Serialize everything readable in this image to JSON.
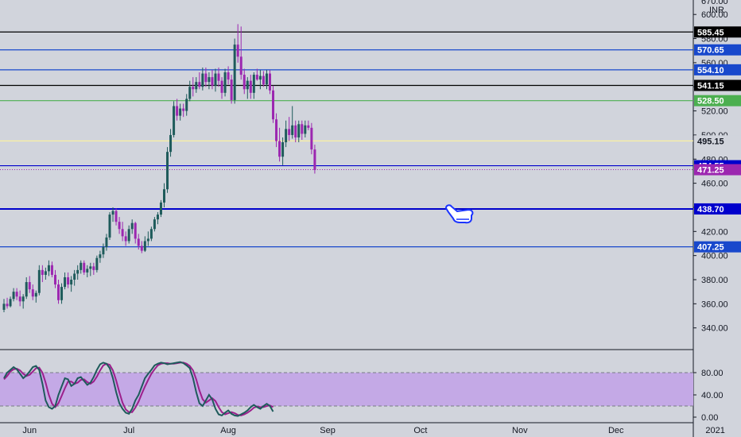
{
  "chart_data": [
    {
      "type": "candlestick",
      "currency_header": [
        "670.00",
        "INR"
      ],
      "y_ticks": [
        "600.00",
        "580.00",
        "560.00",
        "540.00",
        "520.00",
        "500.00",
        "480.00",
        "460.00",
        "440.00",
        "420.00",
        "400.00",
        "380.00",
        "360.00",
        "340.00"
      ],
      "y_tick_values": [
        600,
        580,
        560,
        540,
        520,
        500,
        480,
        460,
        440,
        420,
        400,
        380,
        360,
        340
      ],
      "ylim": [
        322,
        612
      ],
      "x_ticks": [
        "Jun",
        "Jul",
        "Aug",
        "Sep",
        "Oct",
        "Nov",
        "Dec",
        "2021"
      ],
      "x_tick_index": [
        8,
        39,
        70,
        101,
        130,
        161,
        191,
        222
      ],
      "last_price": 471.25,
      "last_price_label": "471.25",
      "horizontal_levels": [
        {
          "value": 585.45,
          "label": "585.45",
          "color": "#000000",
          "tag_bg": "#000000"
        },
        {
          "value": 570.65,
          "label": "570.65",
          "color": "#1848cc",
          "tag_bg": "#1848cc"
        },
        {
          "value": 554.1,
          "label": "554.10",
          "color": "#1848cc",
          "tag_bg": "#1848cc"
        },
        {
          "value": 541.15,
          "label": "541.15",
          "color": "#000000",
          "tag_bg": "#000000"
        },
        {
          "value": 528.5,
          "label": "528.50",
          "color": "#4caf50",
          "tag_bg": "#4caf50"
        },
        {
          "value": 495.15,
          "label": "495.15",
          "color": "#fff59d",
          "tag_bg": "#d1d4dc"
        },
        {
          "value": 474.55,
          "label": "474.55",
          "color": "#0000cc",
          "tag_bg": "#0000cc"
        },
        {
          "value": 438.7,
          "label": "438.70",
          "color": "#0000cc",
          "tag_bg": "#0000cc"
        },
        {
          "value": 407.25,
          "label": "407.25",
          "color": "#1848cc",
          "tag_bg": "#1848cc"
        }
      ],
      "candles": [
        [
          355,
          364,
          353,
          360
        ],
        [
          360,
          365,
          356,
          358
        ],
        [
          358,
          366,
          357,
          364
        ],
        [
          364,
          373,
          362,
          370
        ],
        [
          370,
          373,
          363,
          366
        ],
        [
          366,
          371,
          358,
          362
        ],
        [
          362,
          368,
          356,
          366
        ],
        [
          366,
          382,
          364,
          378
        ],
        [
          378,
          383,
          369,
          372
        ],
        [
          372,
          376,
          363,
          366
        ],
        [
          366,
          371,
          361,
          369
        ],
        [
          369,
          392,
          367,
          388
        ],
        [
          388,
          392,
          378,
          384
        ],
        [
          384,
          390,
          380,
          387
        ],
        [
          387,
          396,
          383,
          392
        ],
        [
          392,
          395,
          382,
          384
        ],
        [
          384,
          388,
          373,
          376
        ],
        [
          376,
          380,
          360,
          363
        ],
        [
          363,
          377,
          360,
          374
        ],
        [
          374,
          386,
          372,
          382
        ],
        [
          382,
          386,
          373,
          376
        ],
        [
          376,
          383,
          370,
          380
        ],
        [
          380,
          388,
          375,
          385
        ],
        [
          385,
          392,
          380,
          388
        ],
        [
          388,
          396,
          385,
          394
        ],
        [
          394,
          396,
          384,
          386
        ],
        [
          386,
          392,
          382,
          389
        ],
        [
          389,
          394,
          383,
          391
        ],
        [
          391,
          394,
          384,
          388
        ],
        [
          388,
          400,
          386,
          398
        ],
        [
          398,
          404,
          394,
          401
        ],
        [
          401,
          410,
          398,
          407
        ],
        [
          407,
          418,
          404,
          415
        ],
        [
          415,
          436,
          413,
          434
        ],
        [
          434,
          440,
          428,
          437
        ],
        [
          437,
          439,
          425,
          428
        ],
        [
          428,
          432,
          418,
          422
        ],
        [
          422,
          428,
          412,
          416
        ],
        [
          416,
          420,
          408,
          412
        ],
        [
          412,
          425,
          410,
          422
        ],
        [
          422,
          430,
          418,
          427
        ],
        [
          427,
          428,
          410,
          414
        ],
        [
          414,
          418,
          405,
          408
        ],
        [
          408,
          412,
          402,
          404
        ],
        [
          404,
          416,
          403,
          412
        ],
        [
          412,
          420,
          408,
          414
        ],
        [
          414,
          424,
          412,
          422
        ],
        [
          422,
          432,
          420,
          430
        ],
        [
          430,
          436,
          426,
          434
        ],
        [
          434,
          446,
          432,
          444
        ],
        [
          444,
          460,
          440,
          455
        ],
        [
          455,
          490,
          452,
          486
        ],
        [
          486,
          505,
          482,
          500
        ],
        [
          500,
          528,
          498,
          524
        ],
        [
          524,
          530,
          512,
          516
        ],
        [
          516,
          526,
          512,
          522
        ],
        [
          522,
          526,
          515,
          520
        ],
        [
          520,
          534,
          516,
          530
        ],
        [
          530,
          545,
          528,
          540
        ],
        [
          540,
          548,
          532,
          538
        ],
        [
          538,
          548,
          535,
          544
        ],
        [
          544,
          552,
          538,
          540
        ],
        [
          540,
          556,
          537,
          551
        ],
        [
          551,
          556,
          540,
          544
        ],
        [
          544,
          552,
          538,
          548
        ],
        [
          548,
          554,
          538,
          541
        ],
        [
          541,
          555,
          536,
          551
        ],
        [
          551,
          556,
          540,
          545
        ],
        [
          545,
          548,
          530,
          535
        ],
        [
          535,
          555,
          532,
          552
        ],
        [
          552,
          557,
          542,
          546
        ],
        [
          546,
          550,
          526,
          529
        ],
        [
          529,
          580,
          526,
          575
        ],
        [
          575,
          592,
          560,
          565
        ],
        [
          565,
          590,
          546,
          550
        ],
        [
          550,
          555,
          534,
          538
        ],
        [
          538,
          548,
          530,
          545
        ],
        [
          545,
          550,
          530,
          535
        ],
        [
          535,
          552,
          530,
          550
        ],
        [
          550,
          555,
          545,
          546
        ],
        [
          546,
          554,
          538,
          549
        ],
        [
          549,
          553,
          540,
          542
        ],
        [
          542,
          554,
          538,
          551
        ],
        [
          551,
          554,
          534,
          537
        ],
        [
          537,
          541,
          510,
          513
        ],
        [
          513,
          518,
          490,
          495
        ],
        [
          495,
          506,
          478,
          482
        ],
        [
          482,
          498,
          475,
          494
        ],
        [
          494,
          512,
          490,
          505
        ],
        [
          505,
          515,
          495,
          500
        ],
        [
          500,
          524,
          497,
          508
        ],
        [
          508,
          512,
          494,
          498
        ],
        [
          498,
          512,
          494,
          509
        ],
        [
          509,
          512,
          496,
          501
        ],
        [
          501,
          512,
          498,
          508
        ],
        [
          508,
          512,
          504,
          506
        ],
        [
          506,
          510,
          484,
          488
        ],
        [
          488,
          492,
          468,
          471
        ]
      ],
      "indicator": {
        "type": "stochastic",
        "y_ticks": [
          "80.00",
          "40.00",
          "0.00"
        ],
        "y_tick_values": [
          80,
          40,
          0
        ],
        "band": [
          20,
          80
        ],
        "ylim": [
          -10,
          120
        ],
        "k": [
          70,
          80,
          85,
          90,
          86,
          78,
          70,
          75,
          82,
          90,
          92,
          85,
          60,
          30,
          18,
          15,
          20,
          40,
          55,
          70,
          68,
          56,
          60,
          70,
          72,
          65,
          58,
          62,
          72,
          85,
          95,
          98,
          96,
          88,
          70,
          45,
          25,
          15,
          8,
          6,
          15,
          30,
          40,
          55,
          70,
          78,
          85,
          93,
          96,
          98,
          97,
          95,
          96,
          97,
          98,
          99,
          97,
          93,
          88,
          70,
          45,
          25,
          20,
          30,
          40,
          32,
          15,
          5,
          3,
          8,
          12,
          6,
          3,
          2,
          5,
          8,
          12,
          18,
          22,
          18,
          15,
          20,
          24,
          20,
          10
        ],
        "d": [
          68,
          74,
          82,
          86,
          87,
          84,
          78,
          74,
          76,
          82,
          88,
          89,
          80,
          62,
          40,
          24,
          18,
          25,
          38,
          52,
          64,
          64,
          60,
          62,
          67,
          68,
          63,
          60,
          64,
          73,
          84,
          93,
          96,
          94,
          84,
          66,
          45,
          26,
          14,
          9,
          9,
          17,
          28,
          42,
          55,
          67,
          78,
          86,
          93,
          96,
          97,
          97,
          96,
          96,
          97,
          98,
          98,
          96,
          92,
          84,
          68,
          48,
          32,
          26,
          30,
          34,
          29,
          18,
          9,
          5,
          7,
          9,
          7,
          4,
          3,
          5,
          8,
          12,
          17,
          19,
          18,
          18,
          20,
          21,
          18
        ]
      }
    }
  ]
}
